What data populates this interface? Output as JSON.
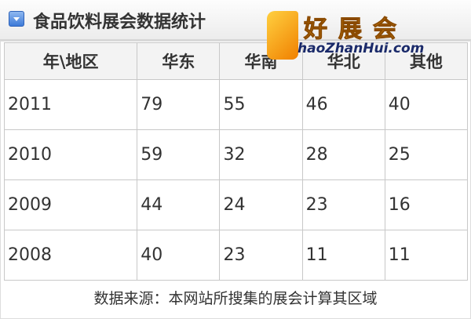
{
  "header": {
    "title": "食品饮料展会数据统计",
    "icon": "collapse-arrow-icon"
  },
  "logo": {
    "chinese": "好展会",
    "english": "haoZhanHui.com"
  },
  "table": {
    "headers": [
      "年\\地区",
      "华东",
      "华南",
      "华北",
      "其他"
    ],
    "rows": [
      [
        "2011",
        "79",
        "55",
        "46",
        "40"
      ],
      [
        "2010",
        "59",
        "32",
        "28",
        "25"
      ],
      [
        "2009",
        "44",
        "24",
        "23",
        "16"
      ],
      [
        "2008",
        "40",
        "23",
        "11",
        "11"
      ]
    ]
  },
  "footer": {
    "source": "数据来源：本网站所搜集的展会计算其区域"
  }
}
